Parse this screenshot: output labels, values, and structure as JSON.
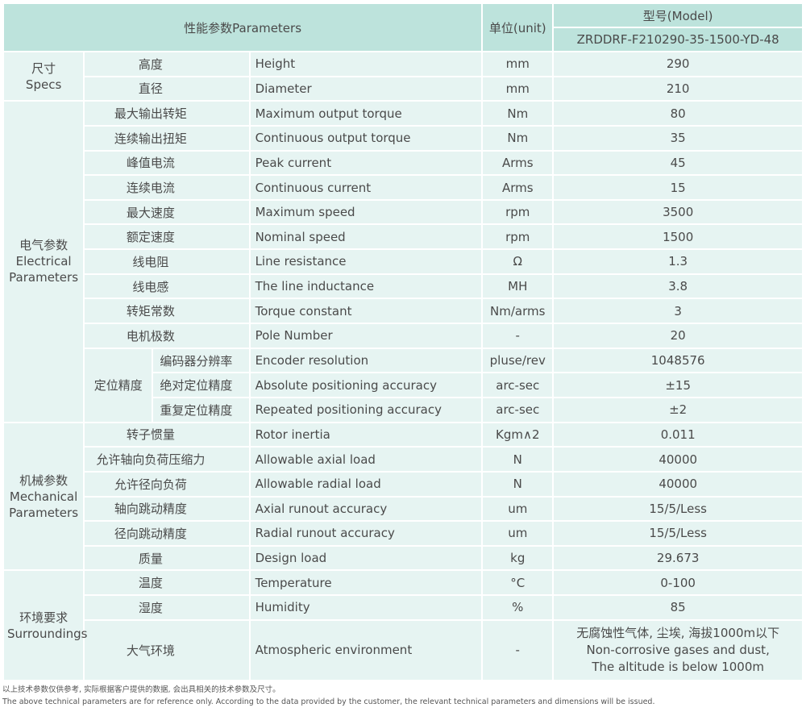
{
  "header": {
    "parameters": "性能参数Parameters",
    "unit": "单位(unit)",
    "model_label": "型号(Model)",
    "model": "ZRDDRF-F210290-35-1500-YD-48"
  },
  "groups": [
    {
      "label_cn": "尺寸",
      "label_en": "Specs",
      "rows": [
        {
          "cn": "高度",
          "en": "Height",
          "unit": "mm",
          "value": "290"
        },
        {
          "cn": "直径",
          "en": "Diameter",
          "unit": "mm",
          "value": "210"
        }
      ]
    },
    {
      "label_cn": "电气参数",
      "label_en": "Electrical Parameters",
      "rows": [
        {
          "cn": "最大输出转矩",
          "en": "Maximum output torque",
          "unit": "Nm",
          "value": "80"
        },
        {
          "cn": "连续输出扭矩",
          "en": "Continuous output torque",
          "unit": "Nm",
          "value": "35"
        },
        {
          "cn": "峰值电流",
          "en": "Peak current",
          "unit": "Arms",
          "value": "45"
        },
        {
          "cn": "连续电流",
          "en": "Continuous current",
          "unit": "Arms",
          "value": "15"
        },
        {
          "cn": "最大速度",
          "en": "Maximum speed",
          "unit": "rpm",
          "value": "3500"
        },
        {
          "cn": "额定速度",
          "en": "Nominal speed",
          "unit": "rpm",
          "value": "1500"
        },
        {
          "cn": "线电阻",
          "en": "Line resistance",
          "unit": "Ω",
          "value": "1.3"
        },
        {
          "cn": "线电感",
          "en": "The line inductance",
          "unit": "MH",
          "value": "3.8"
        },
        {
          "cn": "转矩常数",
          "en": "Torque constant",
          "unit": "Nm/arms",
          "value": "3"
        },
        {
          "cn": "电机极数",
          "en": "Pole Number",
          "unit": "-",
          "value": "20"
        },
        {
          "sub": "定位精度",
          "cn": "编码器分辨率",
          "en": "Encoder resolution",
          "unit": "pluse/rev",
          "value": "1048576"
        },
        {
          "cn": "绝对定位精度",
          "en": "Absolute positioning accuracy",
          "unit": "arc-sec",
          "value": "±15"
        },
        {
          "cn": "重复定位精度",
          "en": "Repeated positioning accuracy",
          "unit": "arc-sec",
          "value": "±2"
        }
      ]
    },
    {
      "label_cn": "机械参数",
      "label_en": "Mechanical Parameters",
      "rows": [
        {
          "cn": "转子惯量",
          "en": "Rotor inertia",
          "unit": "Kgm∧2",
          "value": "0.011"
        },
        {
          "cn": "允许轴向负荷压缩力",
          "en": "Allowable axial load",
          "unit": "N",
          "value": "40000"
        },
        {
          "cn": "允许径向负荷",
          "en": "Allowable radial load",
          "unit": "N",
          "value": "40000"
        },
        {
          "cn": "轴向跳动精度",
          "en": "Axial runout accuracy",
          "unit": "um",
          "value": "15/5/Less"
        },
        {
          "cn": "径向跳动精度",
          "en": "Radial runout accuracy",
          "unit": "um",
          "value": "15/5/Less"
        },
        {
          "cn": "质量",
          "en": "Design load",
          "unit": "kg",
          "value": "29.673"
        }
      ]
    },
    {
      "label_cn": "环境要求",
      "label_en": "Surroundings",
      "rows": [
        {
          "cn": "温度",
          "en": "Temperature",
          "unit": "°C",
          "value": "0-100"
        },
        {
          "cn": "湿度",
          "en": "Humidity",
          "unit": "%",
          "value": "85"
        },
        {
          "cn": "大气环境",
          "en": "Atmospheric environment",
          "unit": "-",
          "value_lines": [
            "无腐蚀性气体, 尘埃, 海拔1000m以下",
            "Non-corrosive gases and dust,",
            "The altitude is below 1000m"
          ]
        }
      ]
    }
  ],
  "notes": {
    "cn": "以上技术参数仅供参考, 实际根据客户提供的数据, 会出具相关的技术参数及尺寸。",
    "en": "The above technical parameters are for reference only. According to the data provided by the customer, the relevant technical parameters and dimensions will be issued."
  },
  "colors": {
    "header_bg": "#bde3dc",
    "body_bg": "#e6f4f2"
  }
}
